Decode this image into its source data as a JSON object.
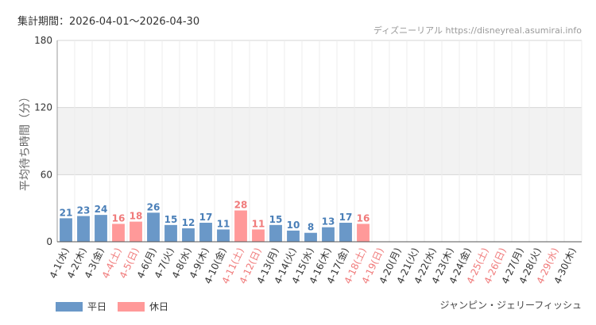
{
  "header": {
    "period_label": "集計期間：2026-04-01～2026-04-30",
    "credit": "ディズニーリアル https://disneyreal.asumirai.info"
  },
  "footer": {
    "attraction": "ジャンピン・ジェリーフィッシュ"
  },
  "legend": [
    {
      "label": "平日",
      "color": "#6a98c8"
    },
    {
      "label": "休日",
      "color": "#ff9999"
    }
  ],
  "colors": {
    "weekday_bar": "#6a98c8",
    "holiday_bar": "#ff9999",
    "weekday_text": "#4a7fb8",
    "holiday_text": "#f07a7a",
    "band": "#f2f2f2"
  },
  "chart_data": {
    "type": "bar",
    "ylabel": "平均待ち時間（分）",
    "ylim": [
      0,
      180
    ],
    "yticks": [
      0,
      60,
      120,
      180
    ],
    "grid": true,
    "legend_position": "bottom-left",
    "categories": [
      "4-1(水)",
      "4-2(木)",
      "4-3(金)",
      "4-4(土)",
      "4-5(日)",
      "4-6(月)",
      "4-7(火)",
      "4-8(水)",
      "4-9(木)",
      "4-10(金)",
      "4-11(土)",
      "4-12(日)",
      "4-13(月)",
      "4-14(火)",
      "4-15(水)",
      "4-16(木)",
      "4-17(金)",
      "4-18(土)",
      "4-19(日)",
      "4-20(月)",
      "4-21(火)",
      "4-22(水)",
      "4-23(木)",
      "4-24(金)",
      "4-25(土)",
      "4-26(日)",
      "4-27(月)",
      "4-28(火)",
      "4-29(水)",
      "4-30(木)"
    ],
    "values": [
      21,
      23,
      24,
      16,
      18,
      26,
      15,
      12,
      17,
      11,
      28,
      11,
      15,
      10,
      8,
      13,
      17,
      16,
      null,
      null,
      null,
      null,
      null,
      null,
      null,
      null,
      null,
      null,
      null,
      null
    ],
    "is_holiday": [
      false,
      false,
      false,
      true,
      true,
      false,
      false,
      false,
      false,
      false,
      true,
      true,
      false,
      false,
      false,
      false,
      false,
      true,
      true,
      false,
      false,
      false,
      false,
      false,
      true,
      true,
      false,
      false,
      true,
      false
    ]
  }
}
